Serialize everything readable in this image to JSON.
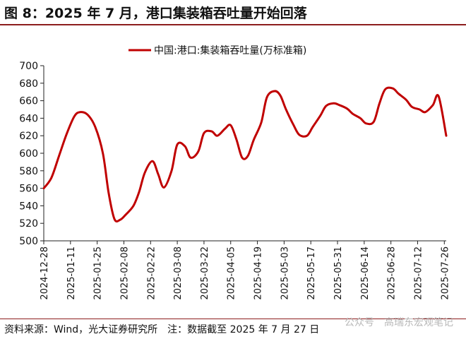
{
  "figure": {
    "title": "图 8：2025 年 7 月，港口集装箱吞吐量开始回落",
    "source": "资料来源：Wind，光大证券研究所　注：数据截至 2025 年 7 月 27 日",
    "watermark_left": "公众号",
    "watermark_right": "高瑞东宏观笔记"
  },
  "colors": {
    "series": "#c00000",
    "rule": "#8c1d1d"
  },
  "chart_data": {
    "type": "line",
    "title": "",
    "xlabel": "",
    "ylabel": "",
    "ylim": [
      500,
      700
    ],
    "yticks": [
      500,
      520,
      540,
      560,
      580,
      600,
      620,
      640,
      660,
      680,
      700
    ],
    "xlim": [
      "2024-12-28",
      "2025-07-27"
    ],
    "xticks": [
      "2024-12-28",
      "2025-01-11",
      "2025-01-25",
      "2025-02-08",
      "2025-02-22",
      "2025-03-08",
      "2025-03-22",
      "2025-04-05",
      "2025-04-19",
      "2025-05-03",
      "2025-05-17",
      "2025-05-31",
      "2025-06-14",
      "2025-06-28",
      "2025-07-12",
      "2025-07-26"
    ],
    "grid": false,
    "legend": "top-center",
    "series": [
      {
        "name": "中国:港口:集装箱吞吐量(万标准箱)",
        "x": [
          "2024-12-28",
          "2025-01-01",
          "2025-01-05",
          "2025-01-09",
          "2025-01-13",
          "2025-01-16",
          "2025-01-20",
          "2025-01-24",
          "2025-01-28",
          "2025-01-31",
          "2025-02-03",
          "2025-02-06",
          "2025-02-09",
          "2025-02-13",
          "2025-02-16",
          "2025-02-19",
          "2025-02-23",
          "2025-02-26",
          "2025-03-01",
          "2025-03-05",
          "2025-03-08",
          "2025-03-12",
          "2025-03-15",
          "2025-03-19",
          "2025-03-22",
          "2025-03-26",
          "2025-03-29",
          "2025-04-02",
          "2025-04-05",
          "2025-04-08",
          "2025-04-11",
          "2025-04-14",
          "2025-04-17",
          "2025-04-21",
          "2025-04-24",
          "2025-04-28",
          "2025-05-01",
          "2025-05-04",
          "2025-05-08",
          "2025-05-11",
          "2025-05-15",
          "2025-05-18",
          "2025-05-22",
          "2025-05-25",
          "2025-05-29",
          "2025-06-01",
          "2025-06-05",
          "2025-06-08",
          "2025-06-12",
          "2025-06-15",
          "2025-06-19",
          "2025-06-22",
          "2025-06-25",
          "2025-06-29",
          "2025-07-02",
          "2025-07-06",
          "2025-07-09",
          "2025-07-13",
          "2025-07-16",
          "2025-07-20",
          "2025-07-23",
          "2025-07-27"
        ],
        "values": [
          560,
          572,
          597,
          622,
          642,
          647,
          644,
          630,
          600,
          555,
          525,
          524,
          530,
          540,
          556,
          578,
          591,
          576,
          561,
          580,
          610,
          608,
          595,
          602,
          623,
          625,
          620,
          628,
          632,
          616,
          595,
          597,
          615,
          635,
          664,
          671,
          666,
          650,
          632,
          621,
          620,
          630,
          643,
          654,
          657,
          655,
          651,
          645,
          640,
          634,
          636,
          657,
          673,
          674,
          668,
          661,
          653,
          650,
          647,
          655,
          665,
          620
        ]
      }
    ]
  }
}
